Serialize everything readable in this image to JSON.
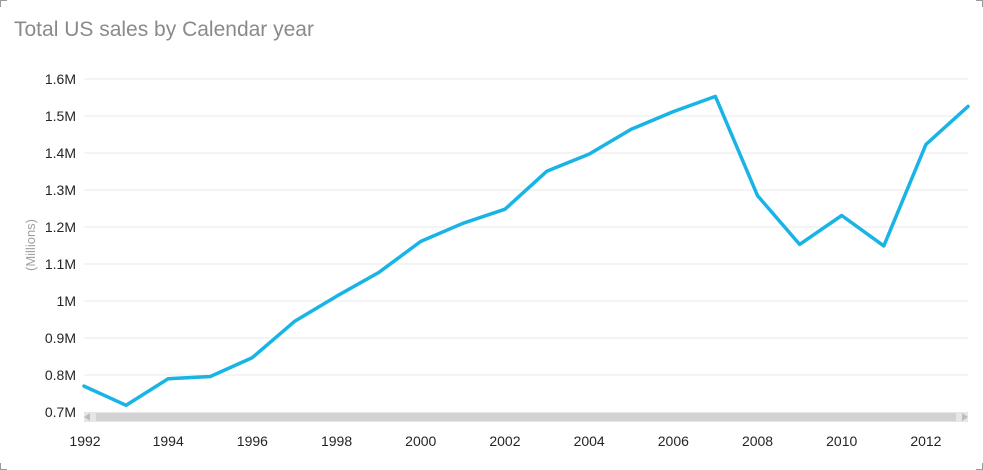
{
  "visual": {
    "title": "Total US sales by Calendar year"
  },
  "chart_data": {
    "type": "line",
    "title": "Total US sales by Calendar year",
    "ylabel": "(Millions)",
    "xlabel": "",
    "ylim": [
      0.7,
      1.6
    ],
    "xlim": [
      1992,
      2013
    ],
    "yticks": [
      {
        "value": 0.7,
        "label": "0.7M"
      },
      {
        "value": 0.8,
        "label": "0.8M"
      },
      {
        "value": 0.9,
        "label": "0.9M"
      },
      {
        "value": 1.0,
        "label": "1M"
      },
      {
        "value": 1.1,
        "label": "1.1M"
      },
      {
        "value": 1.2,
        "label": "1.2M"
      },
      {
        "value": 1.3,
        "label": "1.3M"
      },
      {
        "value": 1.4,
        "label": "1.4M"
      },
      {
        "value": 1.5,
        "label": "1.5M"
      },
      {
        "value": 1.6,
        "label": "1.6M"
      }
    ],
    "xticks": [
      {
        "value": 1992,
        "label": "1992"
      },
      {
        "value": 1994,
        "label": "1994"
      },
      {
        "value": 1996,
        "label": "1996"
      },
      {
        "value": 1998,
        "label": "1998"
      },
      {
        "value": 2000,
        "label": "2000"
      },
      {
        "value": 2002,
        "label": "2002"
      },
      {
        "value": 2004,
        "label": "2004"
      },
      {
        "value": 2006,
        "label": "2006"
      },
      {
        "value": 2008,
        "label": "2008"
      },
      {
        "value": 2010,
        "label": "2010"
      },
      {
        "value": 2012,
        "label": "2012"
      }
    ],
    "grid": true,
    "color": "#19b4e6",
    "x": [
      1992,
      1993,
      1994,
      1995,
      1996,
      1997,
      1998,
      1999,
      2000,
      2001,
      2002,
      2003,
      2004,
      2005,
      2006,
      2007,
      2008,
      2009,
      2010,
      2011,
      2012,
      2013
    ],
    "values": [
      0.77,
      0.718,
      0.79,
      0.796,
      0.847,
      0.945,
      1.013,
      1.077,
      1.161,
      1.21,
      1.248,
      1.351,
      1.397,
      1.464,
      1.512,
      1.553,
      1.285,
      1.153,
      1.231,
      1.149,
      1.423,
      1.526
    ]
  }
}
